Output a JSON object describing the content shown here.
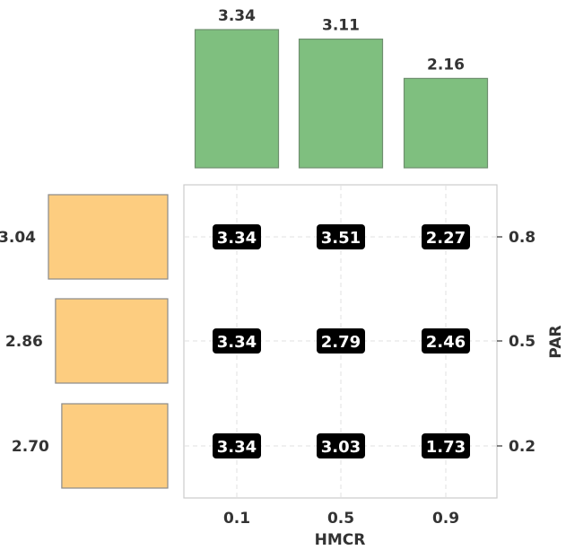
{
  "chart_data": {
    "type": "heatmap",
    "xlabel": "HMCR",
    "ylabel": "PAR",
    "x_categories": [
      "0.1",
      "0.5",
      "0.9"
    ],
    "y_categories": [
      "0.8",
      "0.5",
      "0.2"
    ],
    "cells": [
      [
        "3.34",
        "3.51",
        "2.27"
      ],
      [
        "3.34",
        "2.79",
        "2.46"
      ],
      [
        "3.34",
        "3.03",
        "1.73"
      ]
    ],
    "top_marginal": {
      "type": "bar",
      "categories": [
        "0.1",
        "0.5",
        "0.9"
      ],
      "values": [
        3.34,
        3.11,
        2.16
      ],
      "labels": [
        "3.34",
        "3.11",
        "2.16"
      ],
      "color": "#7fbf7f"
    },
    "side_marginal": {
      "type": "barh",
      "categories": [
        "0.8",
        "0.5",
        "0.2"
      ],
      "values": [
        3.04,
        2.86,
        2.7
      ],
      "labels": [
        "3.04",
        "2.86",
        "2.70"
      ],
      "color": "#fdcd80"
    },
    "grid": true,
    "cell_label_style": "white text on black rounded box"
  }
}
